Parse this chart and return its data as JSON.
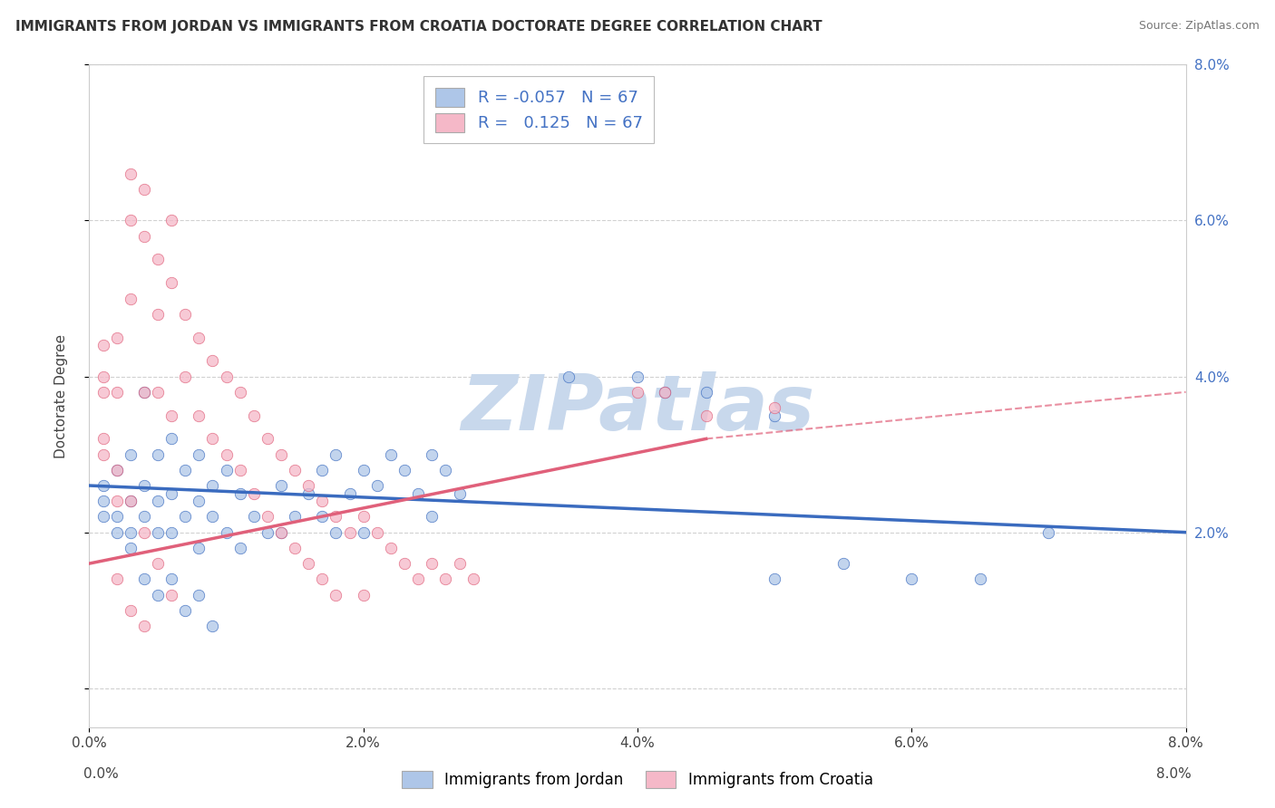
{
  "title": "IMMIGRANTS FROM JORDAN VS IMMIGRANTS FROM CROATIA DOCTORATE DEGREE CORRELATION CHART",
  "source": "Source: ZipAtlas.com",
  "ylabel": "Doctorate Degree",
  "jordan_R": -0.057,
  "croatia_R": 0.125,
  "N": 67,
  "jordan_color": "#aec6e8",
  "croatia_color": "#f5b8c8",
  "jordan_line_color": "#3a6bbf",
  "croatia_line_color": "#e0607a",
  "jordan_scatter": [
    [
      0.001,
      0.026
    ],
    [
      0.001,
      0.024
    ],
    [
      0.002,
      0.028
    ],
    [
      0.002,
      0.022
    ],
    [
      0.003,
      0.03
    ],
    [
      0.003,
      0.024
    ],
    [
      0.003,
      0.02
    ],
    [
      0.004,
      0.038
    ],
    [
      0.004,
      0.026
    ],
    [
      0.004,
      0.022
    ],
    [
      0.005,
      0.03
    ],
    [
      0.005,
      0.024
    ],
    [
      0.005,
      0.02
    ],
    [
      0.006,
      0.032
    ],
    [
      0.006,
      0.025
    ],
    [
      0.006,
      0.02
    ],
    [
      0.007,
      0.028
    ],
    [
      0.007,
      0.022
    ],
    [
      0.008,
      0.03
    ],
    [
      0.008,
      0.024
    ],
    [
      0.008,
      0.018
    ],
    [
      0.009,
      0.026
    ],
    [
      0.009,
      0.022
    ],
    [
      0.01,
      0.028
    ],
    [
      0.01,
      0.02
    ],
    [
      0.011,
      0.025
    ],
    [
      0.011,
      0.018
    ],
    [
      0.012,
      0.022
    ],
    [
      0.013,
      0.02
    ],
    [
      0.014,
      0.026
    ],
    [
      0.014,
      0.02
    ],
    [
      0.015,
      0.022
    ],
    [
      0.016,
      0.025
    ],
    [
      0.017,
      0.028
    ],
    [
      0.017,
      0.022
    ],
    [
      0.018,
      0.03
    ],
    [
      0.018,
      0.02
    ],
    [
      0.019,
      0.025
    ],
    [
      0.02,
      0.028
    ],
    [
      0.02,
      0.02
    ],
    [
      0.021,
      0.026
    ],
    [
      0.022,
      0.03
    ],
    [
      0.023,
      0.028
    ],
    [
      0.024,
      0.025
    ],
    [
      0.025,
      0.03
    ],
    [
      0.025,
      0.022
    ],
    [
      0.026,
      0.028
    ],
    [
      0.027,
      0.025
    ],
    [
      0.035,
      0.04
    ],
    [
      0.04,
      0.04
    ],
    [
      0.042,
      0.038
    ],
    [
      0.045,
      0.038
    ],
    [
      0.05,
      0.035
    ],
    [
      0.05,
      0.014
    ],
    [
      0.055,
      0.016
    ],
    [
      0.06,
      0.014
    ],
    [
      0.065,
      0.014
    ],
    [
      0.07,
      0.02
    ],
    [
      0.001,
      0.022
    ],
    [
      0.002,
      0.02
    ],
    [
      0.003,
      0.018
    ],
    [
      0.004,
      0.014
    ],
    [
      0.005,
      0.012
    ],
    [
      0.006,
      0.014
    ],
    [
      0.007,
      0.01
    ],
    [
      0.008,
      0.012
    ],
    [
      0.009,
      0.008
    ]
  ],
  "croatia_scatter": [
    [
      0.001,
      0.04
    ],
    [
      0.001,
      0.038
    ],
    [
      0.002,
      0.045
    ],
    [
      0.002,
      0.038
    ],
    [
      0.003,
      0.066
    ],
    [
      0.003,
      0.06
    ],
    [
      0.003,
      0.05
    ],
    [
      0.004,
      0.064
    ],
    [
      0.004,
      0.058
    ],
    [
      0.004,
      0.038
    ],
    [
      0.005,
      0.055
    ],
    [
      0.005,
      0.048
    ],
    [
      0.005,
      0.038
    ],
    [
      0.006,
      0.06
    ],
    [
      0.006,
      0.052
    ],
    [
      0.006,
      0.035
    ],
    [
      0.007,
      0.048
    ],
    [
      0.007,
      0.04
    ],
    [
      0.008,
      0.045
    ],
    [
      0.008,
      0.035
    ],
    [
      0.009,
      0.042
    ],
    [
      0.009,
      0.032
    ],
    [
      0.01,
      0.04
    ],
    [
      0.01,
      0.03
    ],
    [
      0.011,
      0.038
    ],
    [
      0.011,
      0.028
    ],
    [
      0.012,
      0.035
    ],
    [
      0.012,
      0.025
    ],
    [
      0.013,
      0.032
    ],
    [
      0.013,
      0.022
    ],
    [
      0.014,
      0.03
    ],
    [
      0.014,
      0.02
    ],
    [
      0.015,
      0.028
    ],
    [
      0.015,
      0.018
    ],
    [
      0.016,
      0.026
    ],
    [
      0.016,
      0.016
    ],
    [
      0.017,
      0.024
    ],
    [
      0.017,
      0.014
    ],
    [
      0.018,
      0.022
    ],
    [
      0.018,
      0.012
    ],
    [
      0.019,
      0.02
    ],
    [
      0.02,
      0.022
    ],
    [
      0.02,
      0.012
    ],
    [
      0.021,
      0.02
    ],
    [
      0.022,
      0.018
    ],
    [
      0.023,
      0.016
    ],
    [
      0.024,
      0.014
    ],
    [
      0.025,
      0.016
    ],
    [
      0.026,
      0.014
    ],
    [
      0.027,
      0.016
    ],
    [
      0.028,
      0.014
    ],
    [
      0.001,
      0.044
    ],
    [
      0.001,
      0.032
    ],
    [
      0.002,
      0.028
    ],
    [
      0.003,
      0.024
    ],
    [
      0.004,
      0.02
    ],
    [
      0.005,
      0.016
    ],
    [
      0.006,
      0.012
    ],
    [
      0.04,
      0.038
    ],
    [
      0.042,
      0.038
    ],
    [
      0.045,
      0.035
    ],
    [
      0.05,
      0.036
    ],
    [
      0.001,
      0.03
    ],
    [
      0.002,
      0.024
    ],
    [
      0.002,
      0.014
    ],
    [
      0.003,
      0.01
    ],
    [
      0.004,
      0.008
    ]
  ],
  "xlim": [
    0.0,
    0.08
  ],
  "ylim": [
    -0.005,
    0.08
  ],
  "xticks": [
    0.0,
    0.02,
    0.04,
    0.06,
    0.08
  ],
  "xtick_labels": [
    "0.0%",
    "2.0%",
    "4.0%",
    "6.0%",
    "8.0%"
  ],
  "right_yticks": [
    0.0,
    0.02,
    0.04,
    0.06,
    0.08
  ],
  "right_ytick_labels": [
    "",
    "2.0%",
    "4.0%",
    "6.0%",
    "8.0%"
  ],
  "watermark": "ZIPatlas",
  "watermark_color": "#c8d8ec",
  "bg_color": "#ffffff",
  "grid_color": "#cccccc",
  "jordan_trendline": [
    0.0,
    0.08,
    0.026,
    0.02
  ],
  "croatia_trendline_solid": [
    0.0,
    0.045,
    0.016,
    0.032
  ],
  "croatia_trendline_dashed": [
    0.045,
    0.08,
    0.032,
    0.038
  ]
}
